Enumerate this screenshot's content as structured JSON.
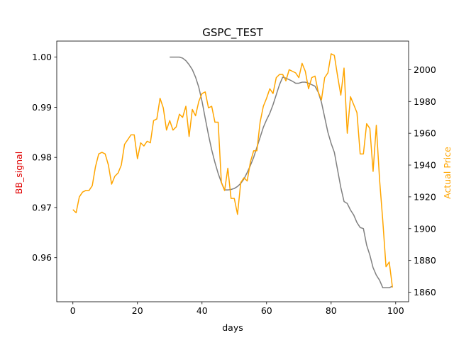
{
  "chart_data": {
    "type": "line",
    "title": "GSPC_TEST",
    "xlabel": "days",
    "ylabel_left": "BB_signal",
    "ylabel_right": "Actual Price",
    "xlim": [
      -5,
      104
    ],
    "ylim_left": [
      0.9512,
      1.0032
    ],
    "ylim_right": [
      1854,
      2018
    ],
    "x_ticks": [
      0,
      20,
      40,
      60,
      80,
      100
    ],
    "y_left_ticks": [
      0.96,
      0.97,
      0.98,
      0.99,
      1.0
    ],
    "y_left_tick_labels": [
      "0.96",
      "0.97",
      "0.98",
      "0.99",
      "1.00"
    ],
    "y_right_ticks": [
      1860,
      1880,
      1900,
      1920,
      1940,
      1960,
      1980,
      2000
    ],
    "grid": false,
    "colors": {
      "bb_signal": "#808080",
      "actual_price": "#FFA500",
      "left_label": "#e00000",
      "right_label": "#FFA500"
    },
    "series": [
      {
        "axis": "left",
        "x": [
          30,
          31,
          32,
          33,
          34,
          35,
          36,
          37,
          38,
          39,
          40,
          41,
          42,
          43,
          44,
          45,
          46,
          47,
          48,
          49,
          50,
          51,
          52,
          53,
          54,
          55,
          56,
          57,
          58,
          59,
          60,
          61,
          62,
          63,
          64,
          65,
          66,
          67,
          68,
          69,
          70,
          71,
          72,
          73,
          74,
          75,
          76,
          77,
          78,
          79,
          80,
          81,
          82,
          83,
          84,
          85,
          86,
          87,
          88,
          89,
          90,
          91,
          92,
          93,
          94,
          95,
          96,
          97,
          98,
          99
        ],
        "values": [
          1.0,
          1.0,
          1.0,
          1.0,
          0.9998,
          0.9993,
          0.9985,
          0.9975,
          0.996,
          0.994,
          0.9912,
          0.9878,
          0.9845,
          0.9815,
          0.979,
          0.9768,
          0.975,
          0.9735,
          0.9735,
          0.9736,
          0.9738,
          0.9742,
          0.9748,
          0.9757,
          0.977,
          0.9784,
          0.98,
          0.982,
          0.984,
          0.986,
          0.9875,
          0.9888,
          0.9905,
          0.9925,
          0.9945,
          0.996,
          0.9958,
          0.9955,
          0.9952,
          0.9948,
          0.9948,
          0.995,
          0.995,
          0.9948,
          0.9945,
          0.9942,
          0.993,
          0.991,
          0.988,
          0.985,
          0.9828,
          0.981,
          0.9775,
          0.974,
          0.9712,
          0.9708,
          0.9695,
          0.9685,
          0.967,
          0.966,
          0.9658,
          0.9625,
          0.9605,
          0.958,
          0.9565,
          0.9555,
          0.954,
          0.954,
          0.954,
          0.9543
        ]
      },
      {
        "axis": "right",
        "x": [
          0,
          1,
          2,
          3,
          4,
          5,
          6,
          7,
          8,
          9,
          10,
          11,
          12,
          13,
          14,
          15,
          16,
          17,
          18,
          19,
          20,
          21,
          22,
          23,
          24,
          25,
          26,
          27,
          28,
          29,
          30,
          31,
          32,
          33,
          34,
          35,
          36,
          37,
          38,
          39,
          40,
          41,
          42,
          43,
          44,
          45,
          46,
          47,
          48,
          49,
          50,
          51,
          52,
          53,
          54,
          55,
          56,
          57,
          58,
          59,
          60,
          61,
          62,
          63,
          64,
          65,
          66,
          67,
          68,
          69,
          70,
          71,
          72,
          73,
          74,
          75,
          76,
          77,
          78,
          79,
          80,
          81,
          82,
          83,
          84,
          85,
          86,
          87,
          88,
          89,
          90,
          91,
          92,
          93,
          94,
          95,
          96,
          97,
          98,
          99
        ],
        "values": [
          1912,
          1910,
          1920,
          1923,
          1924,
          1924,
          1927,
          1939,
          1947,
          1948,
          1947,
          1940,
          1928,
          1933,
          1935,
          1940,
          1953,
          1956,
          1959,
          1959,
          1944,
          1954,
          1952,
          1955,
          1954,
          1968,
          1969,
          1982,
          1976,
          1962,
          1968,
          1962,
          1964,
          1972,
          1970,
          1977,
          1958,
          1975,
          1971,
          1980,
          1985,
          1986,
          1976,
          1977,
          1967,
          1967,
          1929,
          1924,
          1938,
          1919,
          1919,
          1909,
          1929,
          1932,
          1930,
          1942,
          1949,
          1949,
          1967,
          1977,
          1982,
          1988,
          1985,
          1995,
          1997,
          1997,
          1993,
          2000,
          1999,
          1998,
          1995,
          2004,
          1999,
          1988,
          1995,
          1996,
          1986,
          1981,
          1995,
          1998,
          2010,
          2009,
          1996,
          1984,
          2001,
          1960,
          1983,
          1978,
          1973,
          1947,
          1947,
          1966,
          1963,
          1936,
          1965,
          1931,
          1905,
          1876,
          1879,
          1863
        ]
      }
    ]
  }
}
